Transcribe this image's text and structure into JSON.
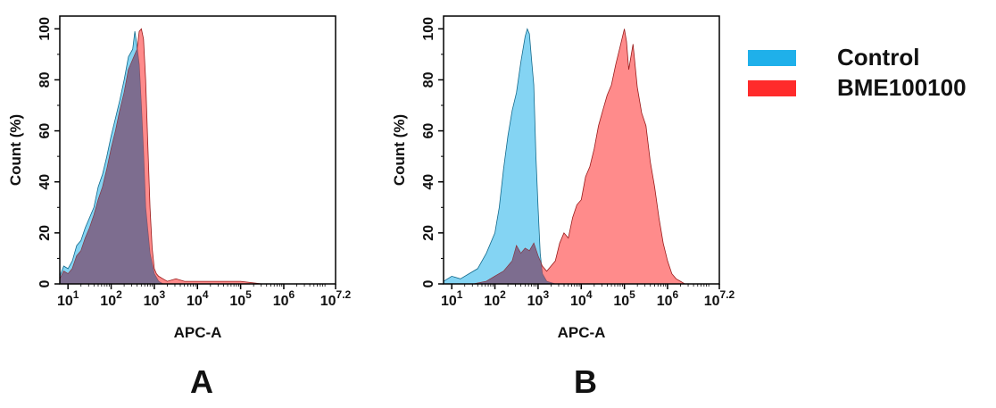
{
  "legend": {
    "position": "right",
    "entries": [
      {
        "name": "Control",
        "color": "#1fb0ea"
      },
      {
        "name": "BME100100",
        "color": "#ff2b2b"
      }
    ]
  },
  "chart_data": [
    {
      "type": "area",
      "panel_label": "A",
      "xlabel": "APC-A",
      "ylabel": "Count  (%)",
      "xscale": "log",
      "xlim": [
        0.81,
        7.2
      ],
      "ylim": [
        0,
        105
      ],
      "x_tick_labels": [
        {
          "base": "10",
          "exp": "1",
          "value": 1
        },
        {
          "base": "10",
          "exp": "2",
          "value": 2
        },
        {
          "base": "10",
          "exp": "3",
          "value": 3
        },
        {
          "base": "10",
          "exp": "4",
          "value": 4
        },
        {
          "base": "10",
          "exp": "5",
          "value": 5
        },
        {
          "base": "10",
          "exp": "6",
          "value": 6
        },
        {
          "base": "10",
          "exp": "7.2",
          "value": 7.2
        }
      ],
      "y_ticks": [
        "0",
        "20",
        "40",
        "60",
        "80",
        "100"
      ],
      "series": [
        {
          "name": "Control",
          "color": "#1fb0ea",
          "x": [
            0.81,
            0.9,
            1.0,
            1.1,
            1.2,
            1.3,
            1.4,
            1.5,
            1.6,
            1.7,
            1.8,
            1.9,
            2.0,
            2.1,
            2.2,
            2.3,
            2.4,
            2.5,
            2.55,
            2.6,
            2.65,
            2.7,
            2.75,
            2.8,
            2.9,
            3.0,
            3.1,
            3.2,
            3.5,
            4.0,
            5.0,
            6.0,
            7.2
          ],
          "y": [
            3,
            7,
            6,
            9,
            15,
            17,
            22,
            26,
            30,
            38,
            43,
            50,
            58,
            65,
            72,
            80,
            89,
            92,
            99,
            93,
            86,
            70,
            52,
            30,
            12,
            4,
            1,
            0,
            0,
            0,
            0,
            0,
            0
          ]
        },
        {
          "name": "BME100100",
          "color": "#ff2b2b",
          "x": [
            0.81,
            0.9,
            1.0,
            1.1,
            1.2,
            1.3,
            1.4,
            1.5,
            1.6,
            1.7,
            1.8,
            1.9,
            2.0,
            2.1,
            2.2,
            2.3,
            2.4,
            2.5,
            2.6,
            2.65,
            2.7,
            2.75,
            2.8,
            2.85,
            2.9,
            2.95,
            3.0,
            3.05,
            3.1,
            3.2,
            3.3,
            3.5,
            3.7,
            4.0,
            4.3,
            4.6,
            5.0,
            5.5,
            6.0,
            7.2
          ],
          "y": [
            2,
            5,
            4,
            6,
            11,
            13,
            18,
            22,
            27,
            33,
            38,
            45,
            53,
            60,
            68,
            75,
            84,
            88,
            92,
            99,
            100,
            96,
            80,
            55,
            30,
            14,
            6,
            4,
            3,
            2,
            1,
            2,
            1,
            1,
            1,
            1,
            1,
            0,
            0,
            0
          ]
        }
      ]
    },
    {
      "type": "area",
      "panel_label": "B",
      "xlabel": "APC-A",
      "ylabel": "Count  (%)",
      "xscale": "log",
      "xlim": [
        0.81,
        7.2
      ],
      "ylim": [
        0,
        105
      ],
      "x_tick_labels": [
        {
          "base": "10",
          "exp": "1",
          "value": 1
        },
        {
          "base": "10",
          "exp": "2",
          "value": 2
        },
        {
          "base": "10",
          "exp": "3",
          "value": 3
        },
        {
          "base": "10",
          "exp": "4",
          "value": 4
        },
        {
          "base": "10",
          "exp": "5",
          "value": 5
        },
        {
          "base": "10",
          "exp": "6",
          "value": 6
        },
        {
          "base": "10",
          "exp": "7.2",
          "value": 7.2
        }
      ],
      "y_ticks": [
        "0",
        "20",
        "40",
        "60",
        "80",
        "100"
      ],
      "series": [
        {
          "name": "Control",
          "color": "#1fb0ea",
          "x": [
            0.81,
            1.0,
            1.2,
            1.4,
            1.6,
            1.8,
            2.0,
            2.1,
            2.2,
            2.3,
            2.4,
            2.5,
            2.6,
            2.7,
            2.75,
            2.8,
            2.85,
            2.9,
            2.95,
            3.0,
            3.05,
            3.1,
            3.2,
            3.4,
            7.2
          ],
          "y": [
            1,
            3,
            2,
            4,
            6,
            12,
            20,
            30,
            45,
            58,
            68,
            75,
            87,
            97,
            100,
            98,
            88,
            78,
            50,
            30,
            12,
            4,
            1,
            0,
            0
          ]
        },
        {
          "name": "BME100100",
          "color": "#ff2b2b",
          "x": [
            0.81,
            1.5,
            1.8,
            2.0,
            2.2,
            2.4,
            2.5,
            2.6,
            2.7,
            2.8,
            2.9,
            3.0,
            3.1,
            3.2,
            3.3,
            3.4,
            3.5,
            3.6,
            3.7,
            3.8,
            3.9,
            4.0,
            4.1,
            4.2,
            4.3,
            4.4,
            4.5,
            4.6,
            4.7,
            4.8,
            4.9,
            5.0,
            5.05,
            5.1,
            5.2,
            5.3,
            5.4,
            5.5,
            5.6,
            5.7,
            5.8,
            5.9,
            6.0,
            6.1,
            6.2,
            6.3,
            6.4,
            7.2
          ],
          "y": [
            0,
            0,
            1,
            3,
            5,
            9,
            15,
            12,
            14,
            13,
            16,
            11,
            7,
            5,
            7,
            9,
            16,
            20,
            18,
            26,
            31,
            33,
            42,
            46,
            53,
            62,
            68,
            74,
            78,
            86,
            93,
            100,
            95,
            84,
            94,
            77,
            67,
            62,
            48,
            38,
            26,
            16,
            9,
            4,
            2,
            1,
            0,
            0
          ]
        }
      ]
    }
  ]
}
